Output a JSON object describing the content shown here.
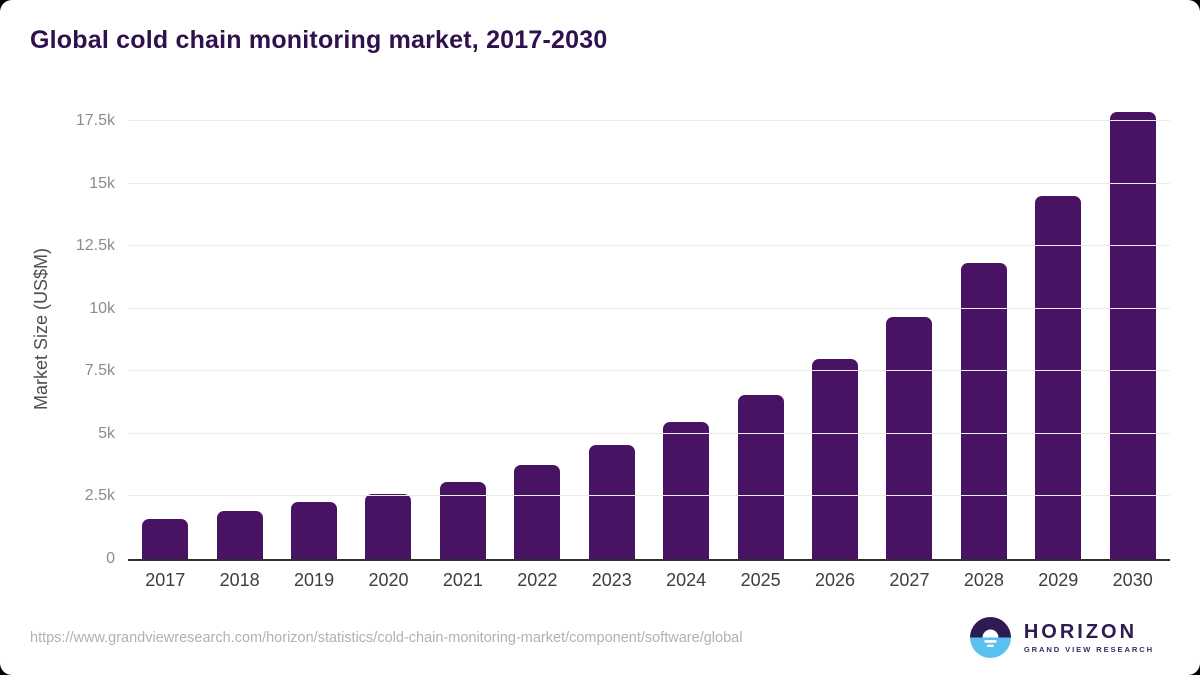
{
  "title": "Global cold chain monitoring market, 2017-2030",
  "chart_data": {
    "type": "bar",
    "title": "Global cold chain monitoring market, 2017-2030",
    "categories": [
      "2017",
      "2018",
      "2019",
      "2020",
      "2021",
      "2022",
      "2023",
      "2024",
      "2025",
      "2026",
      "2027",
      "2028",
      "2029",
      "2030"
    ],
    "values": [
      1590,
      1900,
      2270,
      2590,
      3090,
      3770,
      4540,
      5460,
      6550,
      7980,
      9670,
      11810,
      14490,
      17850
    ],
    "xlabel": "",
    "ylabel": "Market Size (US$M)",
    "ylim": [
      0,
      17500
    ],
    "yticks": [
      {
        "value": 0,
        "label": "0"
      },
      {
        "value": 2500,
        "label": "2.5k"
      },
      {
        "value": 5000,
        "label": "5k"
      },
      {
        "value": 7500,
        "label": "7.5k"
      },
      {
        "value": 10000,
        "label": "10k"
      },
      {
        "value": 12500,
        "label": "12.5k"
      },
      {
        "value": 15000,
        "label": "15k"
      },
      {
        "value": 17500,
        "label": "17.5k"
      }
    ],
    "grid": "horizontal",
    "legend": "none",
    "bar_color": "#491363"
  },
  "footer": {
    "source_url": "https://www.grandviewresearch.com/horizon/statistics/cold-chain-monitoring-market/component/software/global",
    "logo": {
      "name": "HORIZON",
      "subtitle": "GRAND VIEW RESEARCH",
      "icon": "horizon-sunrise-icon"
    }
  },
  "colors": {
    "title": "#30104d",
    "bar": "#491363",
    "axis_line": "#2f2f2f",
    "gridline": "#ececec",
    "tick_label": "#8c8c8c",
    "axis_title": "#4e4e4e",
    "x_label": "#3e3e3e",
    "url": "#b1b1b1",
    "logo_dark": "#2d1b52",
    "logo_blue": "#5ac1ee",
    "background": "#ffffff"
  }
}
